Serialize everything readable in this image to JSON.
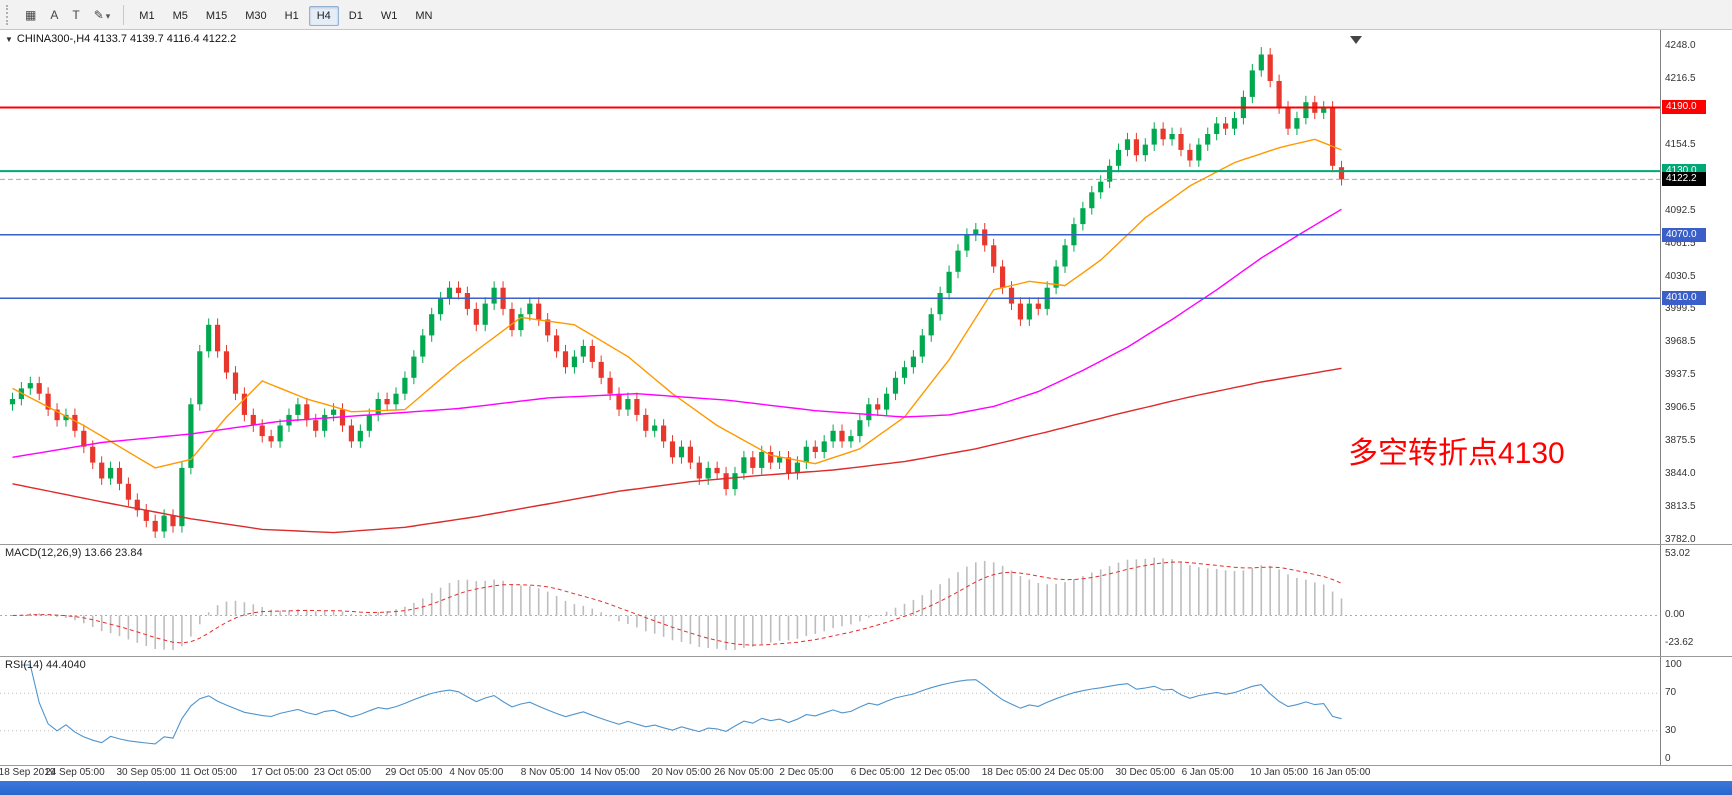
{
  "toolbar": {
    "tool_buttons": [
      {
        "name": "charts-grid",
        "glyph": "▦"
      },
      {
        "name": "cursor",
        "glyph": "A"
      },
      {
        "name": "text",
        "glyph": "T"
      },
      {
        "name": "draw",
        "glyph": "✎",
        "chevron": "▾"
      }
    ],
    "timeframes": [
      "M1",
      "M5",
      "M15",
      "M30",
      "H1",
      "H4",
      "D1",
      "W1",
      "MN"
    ],
    "selected_timeframe": "H4"
  },
  "ui_colors": {
    "taskbar_blue": "#2767CE",
    "toolbar_bg": "#F2F2F2"
  },
  "chart_data": {
    "type": "candlestick",
    "symbol": "CHINA300-",
    "timeframe": "H4",
    "header_marker": "▼",
    "header": "CHINA300-,H4  4133.7 4139.7 4116.4 4122.2",
    "ohlc_display": {
      "open": 4133.7,
      "high": 4139.7,
      "low": 4116.4,
      "close": 4122.2
    },
    "ylim": [
      3782.0,
      4248.0
    ],
    "up_color": "#00A94F",
    "down_color": "#E8372C",
    "y_labels": [
      "4248.0",
      "4216.5",
      "4185.5",
      "4154.5",
      "4123.5",
      "4092.5",
      "4061.5",
      "4030.5",
      "3999.5",
      "3968.5",
      "3937.5",
      "3906.5",
      "3875.5",
      "3844.0",
      "3813.5",
      "3782.0"
    ],
    "x_labels": [
      "18 Sep 2019",
      "24 Sep 05:00",
      "30 Sep 05:00",
      "11 Oct 05:00",
      "17 Oct 05:00",
      "23 Oct 05:00",
      "29 Oct 05:00",
      "4 Nov 05:00",
      "8 Nov 05:00",
      "14 Nov 05:00",
      "20 Nov 05:00",
      "26 Nov 05:00",
      "2 Dec 05:00",
      "6 Dec 05:00",
      "12 Dec 05:00",
      "18 Dec 05:00",
      "24 Dec 05:00",
      "30 Dec 05:00",
      "6 Jan 05:00",
      "10 Jan 05:00",
      "16 Jan 05:00"
    ],
    "horizontal_lines": [
      {
        "price": 4190.0,
        "label": "4190.0",
        "color": "#FF0000",
        "width": 2
      },
      {
        "price": 4130.0,
        "label": "4130.0",
        "color": "#00A876",
        "width": 2
      },
      {
        "price": 4070.0,
        "label": "4070.0",
        "color": "#3A5FC8",
        "width": 1.5
      },
      {
        "price": 4010.0,
        "label": "4010.0",
        "color": "#3A5FC8",
        "width": 1.5
      }
    ],
    "current_price": {
      "value": 4122.2,
      "label": "4122.2",
      "line_color": "#A9A9A9",
      "badge_color": "#000000"
    },
    "annotation": {
      "text": "多空转折点4130",
      "color": "#FF0000"
    },
    "candles": [
      [
        3910,
        3921,
        3904,
        3915
      ],
      [
        3915,
        3931,
        3909,
        3925
      ],
      [
        3925,
        3936,
        3919,
        3930
      ],
      [
        3930,
        3936,
        3914,
        3920
      ],
      [
        3920,
        3926,
        3899,
        3905
      ],
      [
        3905,
        3911,
        3889,
        3895
      ],
      [
        3895,
        3906,
        3889,
        3900
      ],
      [
        3900,
        3906,
        3879,
        3885
      ],
      [
        3885,
        3891,
        3864,
        3870
      ],
      [
        3870,
        3876,
        3849,
        3855
      ],
      [
        3855,
        3861,
        3834,
        3840
      ],
      [
        3840,
        3856,
        3834,
        3850
      ],
      [
        3850,
        3856,
        3829,
        3835
      ],
      [
        3835,
        3841,
        3814,
        3820
      ],
      [
        3820,
        3826,
        3804,
        3810
      ],
      [
        3810,
        3816,
        3794,
        3800
      ],
      [
        3800,
        3806,
        3784,
        3790
      ],
      [
        3790,
        3811,
        3784,
        3805
      ],
      [
        3805,
        3811,
        3789,
        3795
      ],
      [
        3795,
        3856,
        3789,
        3850
      ],
      [
        3850,
        3916,
        3844,
        3910
      ],
      [
        3910,
        3966,
        3904,
        3960
      ],
      [
        3960,
        3991,
        3954,
        3985
      ],
      [
        3985,
        3991,
        3954,
        3960
      ],
      [
        3960,
        3966,
        3934,
        3940
      ],
      [
        3940,
        3946,
        3914,
        3920
      ],
      [
        3920,
        3926,
        3894,
        3900
      ],
      [
        3900,
        3906,
        3884,
        3890
      ],
      [
        3890,
        3896,
        3874,
        3880
      ],
      [
        3880,
        3886,
        3869,
        3875
      ],
      [
        3875,
        3896,
        3869,
        3890
      ],
      [
        3890,
        3906,
        3884,
        3900
      ],
      [
        3900,
        3916,
        3894,
        3910
      ],
      [
        3910,
        3916,
        3889,
        3895
      ],
      [
        3895,
        3901,
        3879,
        3885
      ],
      [
        3885,
        3906,
        3879,
        3900
      ],
      [
        3900,
        3911,
        3894,
        3905
      ],
      [
        3905,
        3911,
        3884,
        3890
      ],
      [
        3890,
        3896,
        3869,
        3875
      ],
      [
        3875,
        3891,
        3869,
        3885
      ],
      [
        3885,
        3906,
        3879,
        3900
      ],
      [
        3900,
        3921,
        3894,
        3915
      ],
      [
        3915,
        3921,
        3904,
        3910
      ],
      [
        3910,
        3926,
        3904,
        3920
      ],
      [
        3920,
        3941,
        3914,
        3935
      ],
      [
        3935,
        3961,
        3929,
        3955
      ],
      [
        3955,
        3981,
        3949,
        3975
      ],
      [
        3975,
        4001,
        3969,
        3995
      ],
      [
        3995,
        4016,
        3989,
        4010
      ],
      [
        4010,
        4026,
        4004,
        4020
      ],
      [
        4020,
        4026,
        4009,
        4015
      ],
      [
        4015,
        4021,
        3994,
        4000
      ],
      [
        4000,
        4006,
        3979,
        3985
      ],
      [
        3985,
        4011,
        3979,
        4005
      ],
      [
        4005,
        4026,
        3999,
        4020
      ],
      [
        4020,
        4026,
        3994,
        4000
      ],
      [
        4000,
        4006,
        3974,
        3980
      ],
      [
        3980,
        4001,
        3974,
        3995
      ],
      [
        3995,
        4011,
        3989,
        4005
      ],
      [
        4005,
        4011,
        3984,
        3990
      ],
      [
        3990,
        3996,
        3969,
        3975
      ],
      [
        3975,
        3981,
        3954,
        3960
      ],
      [
        3960,
        3966,
        3939,
        3945
      ],
      [
        3945,
        3961,
        3939,
        3955
      ],
      [
        3955,
        3971,
        3949,
        3965
      ],
      [
        3965,
        3971,
        3944,
        3950
      ],
      [
        3950,
        3956,
        3929,
        3935
      ],
      [
        3935,
        3941,
        3914,
        3920
      ],
      [
        3920,
        3926,
        3899,
        3905
      ],
      [
        3905,
        3921,
        3899,
        3915
      ],
      [
        3915,
        3921,
        3894,
        3900
      ],
      [
        3900,
        3906,
        3879,
        3885
      ],
      [
        3885,
        3896,
        3879,
        3890
      ],
      [
        3890,
        3896,
        3869,
        3875
      ],
      [
        3875,
        3881,
        3854,
        3860
      ],
      [
        3860,
        3876,
        3854,
        3870
      ],
      [
        3870,
        3876,
        3849,
        3855
      ],
      [
        3855,
        3861,
        3834,
        3840
      ],
      [
        3840,
        3856,
        3834,
        3850
      ],
      [
        3850,
        3856,
        3839,
        3845
      ],
      [
        3845,
        3851,
        3824,
        3830
      ],
      [
        3830,
        3851,
        3824,
        3845
      ],
      [
        3845,
        3866,
        3839,
        3860
      ],
      [
        3860,
        3866,
        3844,
        3850
      ],
      [
        3850,
        3871,
        3844,
        3865
      ],
      [
        3865,
        3871,
        3849,
        3855
      ],
      [
        3855,
        3866,
        3849,
        3860
      ],
      [
        3860,
        3866,
        3839,
        3845
      ],
      [
        3845,
        3861,
        3839,
        3855
      ],
      [
        3855,
        3876,
        3849,
        3870
      ],
      [
        3870,
        3876,
        3859,
        3865
      ],
      [
        3865,
        3881,
        3859,
        3875
      ],
      [
        3875,
        3891,
        3869,
        3885
      ],
      [
        3885,
        3891,
        3869,
        3875
      ],
      [
        3875,
        3886,
        3869,
        3880
      ],
      [
        3880,
        3901,
        3874,
        3895
      ],
      [
        3895,
        3916,
        3889,
        3910
      ],
      [
        3910,
        3916,
        3899,
        3905
      ],
      [
        3905,
        3926,
        3899,
        3920
      ],
      [
        3920,
        3941,
        3914,
        3935
      ],
      [
        3935,
        3951,
        3929,
        3945
      ],
      [
        3945,
        3961,
        3939,
        3955
      ],
      [
        3955,
        3981,
        3949,
        3975
      ],
      [
        3975,
        4001,
        3969,
        3995
      ],
      [
        3995,
        4021,
        3989,
        4015
      ],
      [
        4015,
        4041,
        4009,
        4035
      ],
      [
        4035,
        4061,
        4029,
        4055
      ],
      [
        4055,
        4076,
        4049,
        4070
      ],
      [
        4070,
        4081,
        4064,
        4075
      ],
      [
        4075,
        4081,
        4054,
        4060
      ],
      [
        4060,
        4066,
        4034,
        4040
      ],
      [
        4040,
        4046,
        4014,
        4020
      ],
      [
        4020,
        4026,
        3999,
        4005
      ],
      [
        4005,
        4011,
        3984,
        3990
      ],
      [
        3990,
        4011,
        3984,
        4005
      ],
      [
        4005,
        4011,
        3994,
        4000
      ],
      [
        4000,
        4026,
        3994,
        4020
      ],
      [
        4020,
        4046,
        4014,
        4040
      ],
      [
        4040,
        4066,
        4034,
        4060
      ],
      [
        4060,
        4086,
        4054,
        4080
      ],
      [
        4080,
        4101,
        4074,
        4095
      ],
      [
        4095,
        4116,
        4089,
        4110
      ],
      [
        4110,
        4126,
        4104,
        4120
      ],
      [
        4120,
        4141,
        4114,
        4135
      ],
      [
        4135,
        4156,
        4129,
        4150
      ],
      [
        4150,
        4166,
        4144,
        4160
      ],
      [
        4160,
        4166,
        4139,
        4145
      ],
      [
        4145,
        4161,
        4139,
        4155
      ],
      [
        4155,
        4176,
        4149,
        4170
      ],
      [
        4170,
        4176,
        4154,
        4160
      ],
      [
        4160,
        4171,
        4154,
        4165
      ],
      [
        4165,
        4171,
        4144,
        4150
      ],
      [
        4150,
        4156,
        4134,
        4140
      ],
      [
        4140,
        4161,
        4134,
        4155
      ],
      [
        4155,
        4171,
        4149,
        4165
      ],
      [
        4165,
        4181,
        4159,
        4175
      ],
      [
        4175,
        4181,
        4164,
        4170
      ],
      [
        4170,
        4186,
        4164,
        4180
      ],
      [
        4180,
        4206,
        4174,
        4200
      ],
      [
        4200,
        4231,
        4194,
        4225
      ],
      [
        4225,
        4247,
        4219,
        4240
      ],
      [
        4240,
        4246,
        4209,
        4215
      ],
      [
        4215,
        4221,
        4184,
        4190
      ],
      [
        4190,
        4196,
        4164,
        4170
      ],
      [
        4170,
        4186,
        4164,
        4180
      ],
      [
        4180,
        4201,
        4174,
        4195
      ],
      [
        4195,
        4201,
        4179,
        4185
      ],
      [
        4185,
        4196,
        4179,
        4190
      ],
      [
        4190,
        4196,
        4129,
        4135
      ],
      [
        4133.7,
        4139.7,
        4116.4,
        4122.2
      ]
    ],
    "moving_averages": [
      {
        "name": "ma-fast",
        "color": "#FF9900",
        "points": [
          [
            0,
            3925
          ],
          [
            8,
            3890
          ],
          [
            16,
            3850
          ],
          [
            20,
            3858
          ],
          [
            24,
            3898
          ],
          [
            28,
            3932
          ],
          [
            33,
            3915
          ],
          [
            38,
            3903
          ],
          [
            44,
            3905
          ],
          [
            50,
            3948
          ],
          [
            57,
            3992
          ],
          [
            63,
            3985
          ],
          [
            69,
            3955
          ],
          [
            74,
            3920
          ],
          [
            79,
            3890
          ],
          [
            85,
            3862
          ],
          [
            90,
            3854
          ],
          [
            95,
            3868
          ],
          [
            100,
            3898
          ],
          [
            105,
            3952
          ],
          [
            110,
            4018
          ],
          [
            114,
            4026
          ],
          [
            118,
            4022
          ],
          [
            122,
            4046
          ],
          [
            127,
            4086
          ],
          [
            132,
            4116
          ],
          [
            137,
            4138
          ],
          [
            142,
            4152
          ],
          [
            146,
            4160
          ],
          [
            149,
            4150
          ]
        ]
      },
      {
        "name": "ma-mid",
        "color": "#FF00FF",
        "points": [
          [
            0,
            3860
          ],
          [
            10,
            3874
          ],
          [
            20,
            3882
          ],
          [
            30,
            3894
          ],
          [
            40,
            3900
          ],
          [
            50,
            3906
          ],
          [
            60,
            3916
          ],
          [
            70,
            3920
          ],
          [
            80,
            3914
          ],
          [
            90,
            3904
          ],
          [
            100,
            3898
          ],
          [
            105,
            3900
          ],
          [
            110,
            3908
          ],
          [
            115,
            3922
          ],
          [
            120,
            3942
          ],
          [
            125,
            3964
          ],
          [
            130,
            3990
          ],
          [
            135,
            4018
          ],
          [
            140,
            4048
          ],
          [
            145,
            4074
          ],
          [
            149,
            4094
          ]
        ]
      },
      {
        "name": "ma-slow",
        "color": "#DD2A2A",
        "points": [
          [
            0,
            3835
          ],
          [
            10,
            3818
          ],
          [
            20,
            3802
          ],
          [
            28,
            3792
          ],
          [
            36,
            3789
          ],
          [
            44,
            3794
          ],
          [
            52,
            3804
          ],
          [
            60,
            3816
          ],
          [
            68,
            3828
          ],
          [
            76,
            3837
          ],
          [
            84,
            3843
          ],
          [
            92,
            3848
          ],
          [
            100,
            3856
          ],
          [
            108,
            3868
          ],
          [
            116,
            3884
          ],
          [
            124,
            3901
          ],
          [
            132,
            3917
          ],
          [
            140,
            3931
          ],
          [
            149,
            3944
          ]
        ]
      }
    ],
    "indicators": [
      {
        "type": "MACD",
        "label": "MACD(12,26,9) 13.66 23.84",
        "params": [
          12,
          26,
          9
        ],
        "values": {
          "main": 13.66,
          "signal": 23.84
        },
        "scale_labels": [
          "53.02",
          "0.00",
          "-23.62"
        ],
        "range": [
          -30,
          56
        ],
        "histogram_color": "#BDBDBD",
        "signal_color": "#E03030"
      },
      {
        "type": "RSI",
        "label": "RSI(14) 44.4040",
        "period": 14,
        "value": 44.404,
        "scale_labels": [
          "100",
          "70",
          "30",
          "0"
        ],
        "levels": [
          70,
          30
        ],
        "line_color": "#4F94CD"
      }
    ]
  }
}
